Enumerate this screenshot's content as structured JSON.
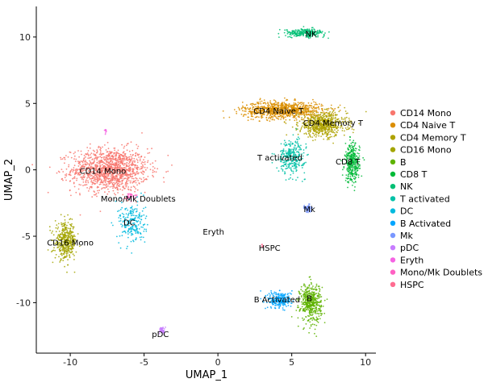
{
  "chart_data": {
    "type": "scatter",
    "xlabel": "UMAP_1",
    "ylabel": "UMAP_2",
    "xlim": [
      -12.3,
      10.7
    ],
    "ylim": [
      -13.8,
      12.3
    ],
    "xticks": [
      -10,
      -5,
      0,
      5,
      10
    ],
    "yticks": [
      -10,
      -5,
      0,
      5,
      10
    ],
    "xtick_labels": [
      "-10",
      "-5",
      "0",
      "5",
      "10"
    ],
    "ytick_labels": [
      "-10",
      "-5",
      "0",
      "5",
      "10"
    ],
    "grid": false,
    "legend_position": "right",
    "series": [
      {
        "name": "CD14 Mono",
        "color": "#F8766D",
        "shape": "ellipse",
        "center": [
          -7.3,
          0.0
        ],
        "spread": [
          2.9,
          1.8
        ],
        "n": 1300,
        "label": "CD14 Mono",
        "label_pos": [
          -7.8,
          -0.1
        ]
      },
      {
        "name": "CD4 Naive T",
        "color": "#DB8E00",
        "shape": "ellipse",
        "center": [
          4.4,
          4.5
        ],
        "spread": [
          3.0,
          0.7
        ],
        "n": 900,
        "label": "CD4 Naive T",
        "label_pos": [
          4.1,
          4.4
        ]
      },
      {
        "name": "CD4 Memory T",
        "color": "#AEA200",
        "shape": "ellipse",
        "center": [
          7.1,
          3.4
        ],
        "spread": [
          1.8,
          1.0
        ],
        "n": 650,
        "label": "CD4 Memory T",
        "label_pos": [
          7.8,
          3.5
        ]
      },
      {
        "name": "CD16 Mono",
        "color": "#A3A500",
        "shape": "ellipse",
        "center": [
          -10.3,
          -5.4
        ],
        "spread": [
          0.8,
          1.5
        ],
        "n": 400,
        "label": "CD16 Mono",
        "label_pos": [
          -10.0,
          -5.5
        ]
      },
      {
        "name": "B",
        "color": "#5EB300",
        "shape": "ellipse",
        "center": [
          6.3,
          -10.0
        ],
        "spread": [
          0.8,
          1.6
        ],
        "n": 450,
        "label": "B",
        "label_pos": [
          6.2,
          -9.7
        ]
      },
      {
        "name": "CD8 T",
        "color": "#00BA38",
        "shape": "ellipse",
        "center": [
          9.1,
          0.5
        ],
        "spread": [
          0.55,
          1.6
        ],
        "n": 350,
        "label": "CD8 T",
        "label_pos": [
          8.8,
          0.6
        ]
      },
      {
        "name": "NK",
        "color": "#00BF74",
        "shape": "ellipse",
        "center": [
          5.9,
          10.3
        ],
        "spread": [
          1.5,
          0.35
        ],
        "n": 250,
        "label": "NK",
        "label_pos": [
          6.3,
          10.2
        ]
      },
      {
        "name": "T activated",
        "color": "#00C1A7",
        "shape": "ellipse",
        "center": [
          5.0,
          1.0
        ],
        "spread": [
          1.0,
          1.4
        ],
        "n": 300,
        "label": "T activated",
        "label_pos": [
          4.2,
          0.9
        ]
      },
      {
        "name": "DC",
        "color": "#00BADE",
        "shape": "ellipse",
        "center": [
          -5.8,
          -4.0
        ],
        "spread": [
          1.0,
          1.8
        ],
        "n": 220,
        "label": "DC",
        "label_pos": [
          -6.0,
          -4.0
        ]
      },
      {
        "name": "B Activated",
        "color": "#00A5FF",
        "shape": "ellipse",
        "center": [
          4.2,
          -9.8
        ],
        "spread": [
          0.9,
          0.7
        ],
        "n": 250,
        "label": "B Activated",
        "label_pos": [
          4.0,
          -9.8
        ]
      },
      {
        "name": "Mk",
        "color": "#7997FF",
        "shape": "ellipse",
        "center": [
          6.1,
          -2.9
        ],
        "spread": [
          0.25,
          0.35
        ],
        "n": 60,
        "label": "Mk",
        "label_pos": [
          6.2,
          -3.0
        ]
      },
      {
        "name": "pDC",
        "color": "#C77CFF",
        "shape": "ellipse",
        "center": [
          -3.8,
          -12.1
        ],
        "spread": [
          0.2,
          0.3
        ],
        "n": 40,
        "label": "pDC",
        "label_pos": [
          -3.9,
          -12.4
        ]
      },
      {
        "name": "Eryth",
        "color": "#F564E3",
        "shape": "ellipse",
        "center": [
          -7.6,
          3.0
        ],
        "spread": [
          0.08,
          0.2
        ],
        "n": 10,
        "label": "Eryth",
        "label_pos": [
          -0.3,
          -4.7
        ]
      },
      {
        "name": "Mono/Mk Doublets",
        "color": "#FF61C3",
        "shape": "ellipse",
        "center": [
          -6.0,
          -2.0
        ],
        "spread": [
          0.4,
          0.3
        ],
        "n": 30,
        "label": "Mono/Mk Doublets",
        "label_pos": [
          -5.4,
          -2.2
        ]
      },
      {
        "name": "HSPC",
        "color": "#FF6C91",
        "shape": "ellipse",
        "center": [
          3.0,
          -5.7
        ],
        "spread": [
          0.1,
          0.1
        ],
        "n": 6,
        "label": "HSPC",
        "label_pos": [
          3.5,
          -5.9
        ]
      }
    ]
  }
}
